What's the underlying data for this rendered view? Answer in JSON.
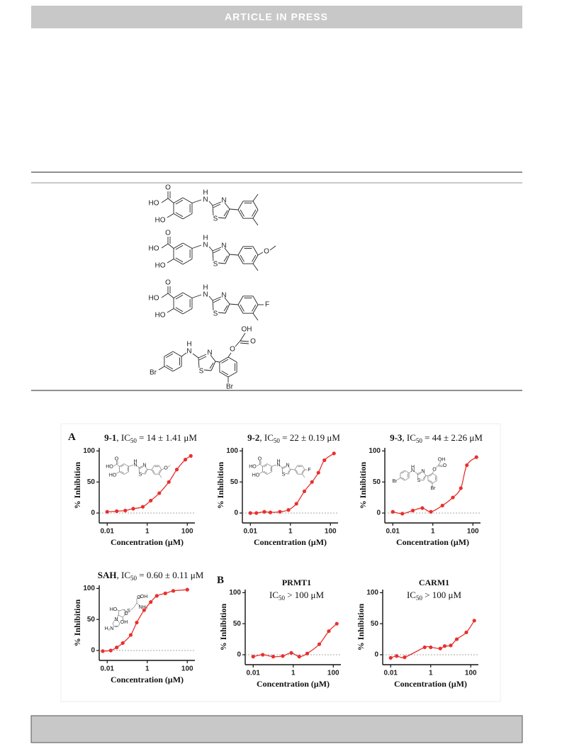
{
  "header": {
    "title": "ARTICLE IN PRESS"
  },
  "table": {
    "structures": [
      {
        "atoms": [
          "O",
          "HO",
          "HO",
          "H",
          "N",
          "N",
          "S"
        ]
      },
      {
        "atoms": [
          "O",
          "HO",
          "HO",
          "H",
          "N",
          "N",
          "S",
          "O"
        ]
      },
      {
        "atoms": [
          "O",
          "HO",
          "HO",
          "H",
          "N",
          "N",
          "S",
          "F"
        ]
      },
      {
        "atoms": [
          "Br",
          "H",
          "N",
          "N",
          "S",
          "O",
          "OH",
          "O",
          "Br"
        ]
      }
    ]
  },
  "figure": {
    "panel_labels": [
      "A",
      "B"
    ],
    "charts": [
      {
        "type": "scatter",
        "title": {
          "compound": "9-1",
          "label": ", IC",
          "sub": "50",
          "text": " = 14 ± 1.41 μM"
        },
        "x": [
          0.01,
          0.03,
          0.08,
          0.2,
          0.6,
          1.5,
          4,
          12,
          30,
          80,
          150
        ],
        "values": [
          2,
          3,
          4,
          7,
          10,
          20,
          32,
          50,
          70,
          86,
          92
        ],
        "color": "#e8302e",
        "xlog": true,
        "xlim": [
          0.004,
          240
        ],
        "ylim": [
          -16,
          105
        ],
        "xticks": [
          0.01,
          1,
          100
        ],
        "yticks": [
          0,
          50,
          100
        ],
        "zero_line": true,
        "xlabel": "Concentration (μM)",
        "ylabel": "% Inhibition",
        "structure": {
          "kind": "salicylic",
          "atoms": [
            "O",
            "HO",
            "HO",
            "H",
            "N",
            "N",
            "S",
            "O"
          ]
        }
      },
      {
        "type": "scatter",
        "title": {
          "compound": "9-2",
          "label": ", IC",
          "sub": "50",
          "text": " = 22 ± 0.19 μM"
        },
        "x": [
          0.01,
          0.02,
          0.05,
          0.1,
          0.3,
          0.8,
          2,
          5,
          12,
          25,
          50,
          150
        ],
        "values": [
          0,
          0,
          2,
          1,
          2,
          5,
          15,
          35,
          50,
          65,
          85,
          96
        ],
        "color": "#e8302e",
        "xlog": true,
        "xlim": [
          0.004,
          240
        ],
        "ylim": [
          -16,
          105
        ],
        "xticks": [
          0.01,
          1,
          100
        ],
        "yticks": [
          0,
          50,
          100
        ],
        "zero_line": true,
        "xlabel": "Concentration (μM)",
        "ylabel": "% Inhibition",
        "structure": {
          "kind": "salicylic",
          "atoms": [
            "O",
            "HO",
            "HO",
            "H",
            "N",
            "N",
            "S",
            "F"
          ]
        }
      },
      {
        "type": "scatter",
        "title": {
          "compound": "9-3",
          "label": ", IC",
          "sub": "50",
          "text": " = 44 ± 2.26 μM"
        },
        "x": [
          0.01,
          0.03,
          0.1,
          0.3,
          0.8,
          3,
          10,
          25,
          50,
          150
        ],
        "values": [
          2,
          -1,
          4,
          8,
          2,
          12,
          25,
          40,
          77,
          90
        ],
        "color": "#e8302e",
        "xlog": true,
        "xlim": [
          0.004,
          240
        ],
        "ylim": [
          -16,
          105
        ],
        "xticks": [
          0.01,
          1,
          100
        ],
        "yticks": [
          0,
          50,
          100
        ],
        "zero_line": true,
        "xlabel": "Concentration (μM)",
        "ylabel": "% Inhibition",
        "structure": {
          "kind": "phenoxy",
          "atoms": [
            "Br",
            "H",
            "N",
            "N",
            "S",
            "O",
            "OH",
            "O",
            "Br"
          ]
        }
      },
      {
        "type": "scatter",
        "title": {
          "compound": "SAH",
          "label": ", IC",
          "sub": "50",
          "text": " = 0.60 ± 0.11 μM"
        },
        "x": [
          0.006,
          0.015,
          0.03,
          0.06,
          0.15,
          0.3,
          0.7,
          1.5,
          3,
          8,
          20,
          100
        ],
        "values": [
          -1,
          0,
          5,
          12,
          25,
          45,
          65,
          78,
          88,
          92,
          96,
          98
        ],
        "color": "#e8302e",
        "xlog": true,
        "xlim": [
          0.004,
          240
        ],
        "ylim": [
          -16,
          105
        ],
        "xticks": [
          0.01,
          1,
          100
        ],
        "yticks": [
          0,
          50,
          100
        ],
        "zero_line": true,
        "xlabel": "Concentration (μM)",
        "ylabel": "% Inhibition",
        "structure": {
          "kind": "sah",
          "atoms": [
            "O",
            "OH",
            "NH₂",
            "S",
            "O",
            "HO",
            "OH",
            "N",
            "H₂N"
          ]
        }
      },
      {
        "type": "scatter",
        "name": "PRMT1",
        "title": {
          "label": "IC",
          "sub": "50",
          "text": " > 100 μM"
        },
        "x": [
          0.01,
          0.03,
          0.1,
          0.3,
          0.8,
          2,
          5,
          20,
          60,
          150
        ],
        "values": [
          -3,
          0,
          -3,
          -2,
          3,
          -3,
          2,
          17,
          38,
          50
        ],
        "color": "#e8302e",
        "xlog": true,
        "xlim": [
          0.004,
          240
        ],
        "ylim": [
          -16,
          105
        ],
        "xticks": [
          0.01,
          1,
          100
        ],
        "yticks": [
          0,
          50,
          100
        ],
        "zero_line": true,
        "xlabel": "Concentration (μM)",
        "ylabel": "% Inhibition"
      },
      {
        "type": "scatter",
        "name": "CARM1",
        "title": {
          "label": "IC",
          "sub": "50",
          "text": " > 100 μM"
        },
        "x": [
          0.01,
          0.02,
          0.05,
          0.5,
          1,
          3,
          5,
          10,
          20,
          60,
          150
        ],
        "values": [
          -5,
          -2,
          -4,
          12,
          12,
          10,
          14,
          15,
          25,
          36,
          55
        ],
        "color": "#e8302e",
        "xlog": true,
        "xlim": [
          0.004,
          240
        ],
        "ylim": [
          -16,
          105
        ],
        "xticks": [
          0.01,
          1,
          100
        ],
        "yticks": [
          0,
          50,
          100
        ],
        "zero_line": true,
        "xlabel": "Concentration (μM)",
        "ylabel": "% Inhibition"
      }
    ]
  }
}
